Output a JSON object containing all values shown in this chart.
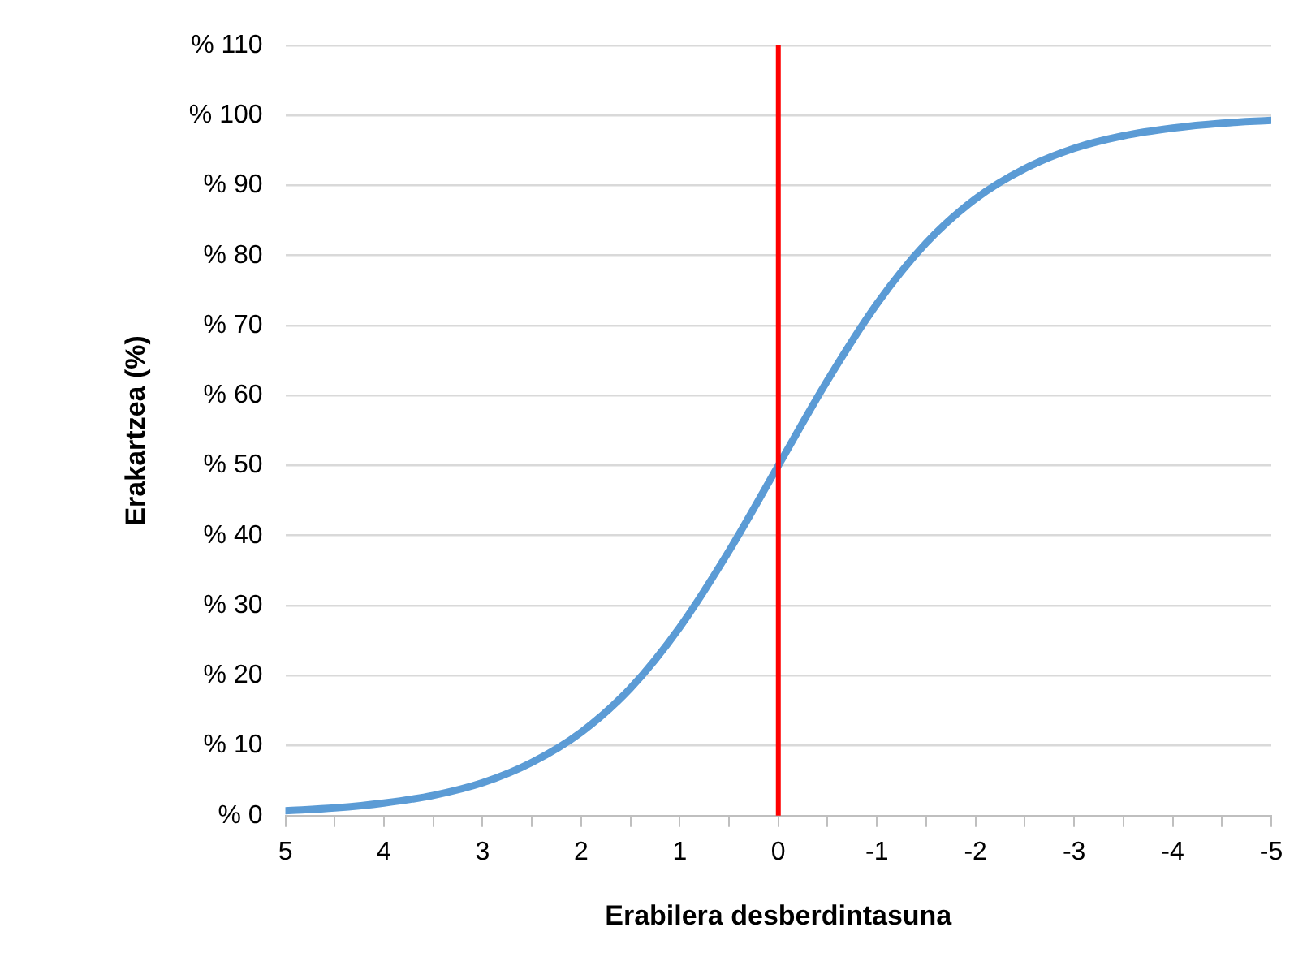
{
  "chart_data": {
    "type": "line",
    "xlabel": "Erabilera desberdintasuna",
    "ylabel": "Erakartzea (%)",
    "xlim": [
      5,
      -5
    ],
    "xticks": [
      5,
      {
        "value": 4.5,
        "label": null
      },
      4,
      {
        "value": 3.5,
        "label": null
      },
      3,
      {
        "value": 2.5,
        "label": null
      },
      2,
      {
        "value": 1.5,
        "label": null
      },
      1,
      {
        "value": 0.5,
        "label": null
      },
      0,
      {
        "value": -0.5,
        "label": null
      },
      -1,
      {
        "value": -1.5,
        "label": null
      },
      -2,
      {
        "value": -2.5,
        "label": null
      },
      -3,
      {
        "value": -3.5,
        "label": null
      },
      -4,
      {
        "value": -4.5,
        "label": null
      },
      -5
    ],
    "ylim": [
      0,
      110
    ],
    "yticks": [
      {
        "value": 0,
        "label": "% 0"
      },
      {
        "value": 10,
        "label": "% 10"
      },
      {
        "value": 20,
        "label": "% 20"
      },
      {
        "value": 30,
        "label": "% 30"
      },
      {
        "value": 40,
        "label": "% 40"
      },
      {
        "value": 50,
        "label": "% 50"
      },
      {
        "value": 60,
        "label": "% 60"
      },
      {
        "value": 70,
        "label": "% 70"
      },
      {
        "value": 80,
        "label": "% 80"
      },
      {
        "value": 90,
        "label": "% 90"
      },
      {
        "value": 100,
        "label": "% 100"
      },
      {
        "value": 110,
        "label": "% 110"
      }
    ],
    "x": [
      5,
      4.5,
      4,
      3.5,
      3,
      2.5,
      2,
      1.5,
      1,
      0.5,
      0,
      -0.5,
      -1,
      -1.5,
      -2,
      -2.5,
      -3,
      -3.5,
      -4,
      -4.5,
      -5
    ],
    "series": [
      {
        "color": "#5b9bd5",
        "values": [
          0.7,
          1.1,
          1.8,
          2.9,
          4.7,
          7.6,
          11.9,
          18.2,
          26.9,
          37.8,
          50,
          62.2,
          73.1,
          81.8,
          88.1,
          92.4,
          95.3,
          97.1,
          98.2,
          98.9,
          99.3
        ]
      }
    ],
    "ref_lines": [
      {
        "axis": "x",
        "value": 0,
        "color": "#ff0000"
      }
    ],
    "grid": "y",
    "marker": "none",
    "line_style": "solid"
  }
}
